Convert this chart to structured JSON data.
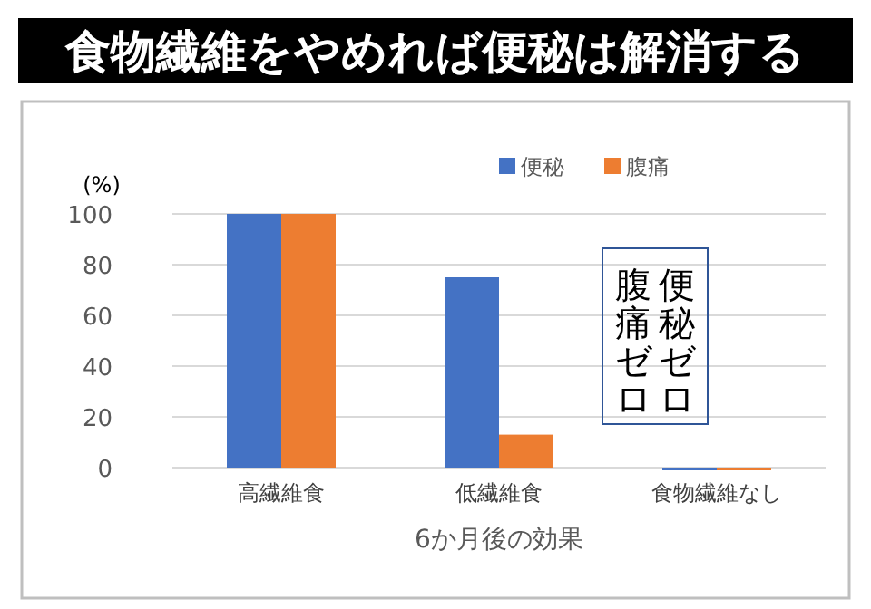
{
  "chart_data": {
    "type": "bar",
    "title": "食物繊維をやめれば便秘は解消する",
    "categories": [
      "高繊維食",
      "低繊維食",
      "食物繊維なし"
    ],
    "series": [
      {
        "name": "便秘",
        "color": "#4472c4",
        "values": [
          100,
          75,
          0
        ]
      },
      {
        "name": "腹痛",
        "color": "#ed7d31",
        "values": [
          100,
          13,
          0
        ]
      }
    ],
    "ylabel": "(%)",
    "xlabel": "6か月後の効果",
    "ylim": [
      0,
      100
    ],
    "yticks": [
      0,
      20,
      40,
      60,
      80,
      100
    ],
    "grid": "y",
    "legend": "top right",
    "annotations": [
      "便秘ゼロ",
      "腹痛ゼロ"
    ]
  }
}
